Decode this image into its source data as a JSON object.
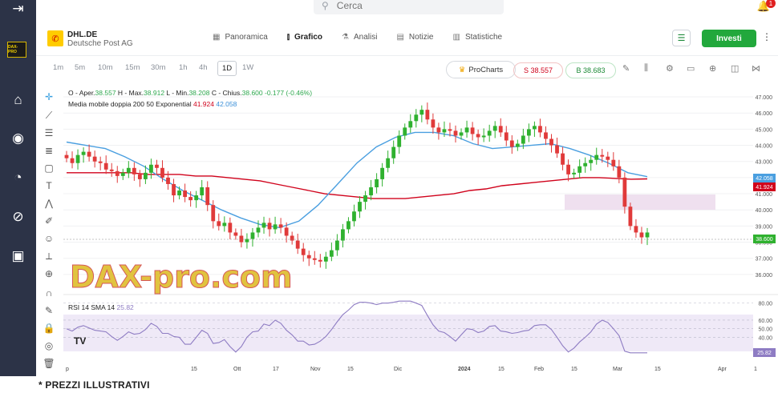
{
  "search": {
    "placeholder": "Cerca"
  },
  "notifications": {
    "count": "1"
  },
  "sidebar": {
    "logo_text": "DAX-PRO"
  },
  "instrument": {
    "ticker": "DHL.DE",
    "name": "Deutsche Post AG"
  },
  "tabs": [
    {
      "label": "Panoramica"
    },
    {
      "label": "Grafico"
    },
    {
      "label": "Analisi"
    },
    {
      "label": "Notizie"
    },
    {
      "label": "Statistiche"
    }
  ],
  "invest_label": "Investi",
  "timeframes": [
    "1m",
    "5m",
    "10m",
    "15m",
    "30m",
    "1h",
    "4h",
    "1D",
    "1W"
  ],
  "prochart_label": "ProCharts",
  "sell_label": "S 38.557",
  "buy_label": "B 38.683",
  "ohlc": {
    "o_label": "O - Aper.",
    "o": "38.557",
    "h_label": "H - Max.",
    "h": "38.912",
    "l_label": "L - Min.",
    "l": "38.208",
    "c_label": "C - Chius.",
    "c": "38.600",
    "chg": "-0.177 (-0.46%)"
  },
  "ma_legend": {
    "label": "Media mobile doppia 200 50 Exponential",
    "v1": "41.924",
    "v2": "42.058"
  },
  "rsi_legend": {
    "label": "RSI 14 SMA 14",
    "v": "25.82"
  },
  "watermark": "DAX-pro.com",
  "footer_note": "* PREZZI ILLUSTRATIVI",
  "colors": {
    "up": "#2fb12f",
    "down": "#e03a3a",
    "ma200": "#d0021b",
    "ma50": "#4a9fe0",
    "rsi": "#8e7cc3",
    "accent": "#22a83c"
  },
  "chart_data": {
    "type": "candlestick",
    "x_ticks": [
      "p",
      "15",
      "Ott",
      "17",
      "Nov",
      "15",
      "Dic",
      "2024",
      "15",
      "Feb",
      "15",
      "Mar",
      "15",
      "Apr",
      "1"
    ],
    "y_ticks": [
      36,
      37,
      38,
      39,
      40,
      41,
      42,
      43,
      44,
      45,
      46,
      47
    ],
    "y_labels": [
      "36.000",
      "37.000",
      "38.000",
      "39.000",
      "40.000",
      "41.000",
      "42.000",
      "43.000",
      "44.000",
      "45.000",
      "46.000",
      "47.000"
    ],
    "ylim": [
      35.4,
      47.3
    ],
    "last_price": "38.600",
    "ma200_value": "41.924",
    "ma50_value": "42.058",
    "close_series": [
      43.2,
      42.9,
      43.4,
      43.6,
      43.3,
      43.0,
      42.9,
      42.5,
      42.4,
      42.1,
      42.3,
      42.6,
      42.2,
      41.9,
      42.3,
      42.8,
      42.6,
      42.0,
      41.6,
      40.9,
      41.2,
      40.8,
      40.6,
      40.9,
      41.4,
      40.3,
      39.3,
      39.0,
      39.2,
      38.6,
      38.4,
      38.0,
      38.2,
      38.6,
      38.9,
      39.2,
      38.8,
      39.1,
      38.9,
      38.4,
      38.1,
      37.6,
      37.2,
      37.0,
      36.9,
      36.8,
      37.1,
      37.5,
      38.1,
      38.8,
      39.3,
      39.9,
      40.5,
      40.9,
      41.4,
      41.9,
      42.6,
      43.2,
      43.9,
      44.6,
      45.1,
      45.5,
      45.9,
      46.2,
      45.6,
      45.1,
      44.8,
      45.0,
      44.9,
      44.6,
      44.8,
      45.1,
      44.7,
      44.5,
      44.6,
      44.9,
      45.2,
      44.8,
      44.3,
      43.9,
      44.1,
      44.6,
      45.0,
      45.2,
      44.8,
      44.4,
      44.0,
      43.5,
      42.8,
      42.2,
      42.3,
      42.7,
      42.9,
      43.1,
      43.4,
      43.3,
      43.1,
      42.7,
      42.0,
      40.2,
      39.0,
      38.6,
      38.3,
      38.6
    ],
    "ma200_series": [
      42.3,
      42.3,
      42.3,
      42.3,
      42.3,
      42.2,
      42.2,
      42.2,
      42.1,
      42.1,
      42.0,
      41.9,
      41.8,
      41.6,
      41.4,
      41.2,
      41.0,
      40.9,
      40.8,
      40.7,
      40.7,
      40.7,
      40.8,
      40.9,
      41.0,
      41.2,
      41.3,
      41.5,
      41.6,
      41.7,
      41.8,
      41.9,
      42.0,
      42.0,
      41.95,
      41.9,
      41.92
    ],
    "ma50_series": [
      44.2,
      44.0,
      43.8,
      43.3,
      42.7,
      41.9,
      41.2,
      40.6,
      40.0,
      39.5,
      39.1,
      38.9,
      39.3,
      40.3,
      41.6,
      42.9,
      43.9,
      44.5,
      44.8,
      44.8,
      44.6,
      44.1,
      43.8,
      43.9,
      44.0,
      44.1,
      43.8,
      43.4,
      42.9,
      42.3,
      42.06
    ],
    "rsi": {
      "ylim": [
        20,
        85
      ],
      "ticks": [
        40,
        50,
        60,
        80
      ],
      "labels": [
        "40.00",
        "50.00",
        "60.00",
        "80.00"
      ],
      "last": "25.82"
    }
  }
}
